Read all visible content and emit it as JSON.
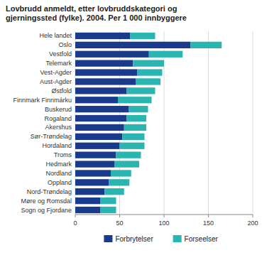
{
  "chart_data": {
    "type": "bar",
    "orientation": "horizontal",
    "stacked": true,
    "title": "Lovbrudd anmeldt, etter lovbruddskategori og\ngjerningssted (fylke). 2004. Per 1 000 innbyggere",
    "categories": [
      "Sogn og Fjordane",
      "Møre og Romsdal",
      "Nord-Trøndelag",
      "Oppland",
      "Nordland",
      "Hedmark",
      "Troms",
      "Hordaland",
      "Sør-Trøndelag",
      "Akershus",
      "Rogaland",
      "Buskerud",
      "Finnmark Finnmárku",
      "Østfold",
      "Aust-Agder",
      "Vest-Agder",
      "Telemark",
      "Vestfold",
      "Oslo",
      "Hele landet"
    ],
    "series": [
      {
        "name": "Forbrytelser",
        "color": "#1a3a8c",
        "values": [
          28,
          28,
          33,
          38,
          40,
          44,
          46,
          50,
          53,
          55,
          58,
          60,
          48,
          58,
          68,
          70,
          65,
          83,
          130,
          62
        ]
      },
      {
        "name": "Forseelser",
        "color": "#2ab5b0",
        "values": [
          18,
          18,
          22,
          23,
          23,
          28,
          28,
          28,
          25,
          25,
          22,
          22,
          38,
          32,
          28,
          28,
          35,
          38,
          35,
          28
        ]
      }
    ],
    "xlim": [
      0,
      200
    ],
    "xticks": [
      0,
      50,
      100,
      150,
      200
    ],
    "grid": true,
    "legend": "bottom"
  }
}
